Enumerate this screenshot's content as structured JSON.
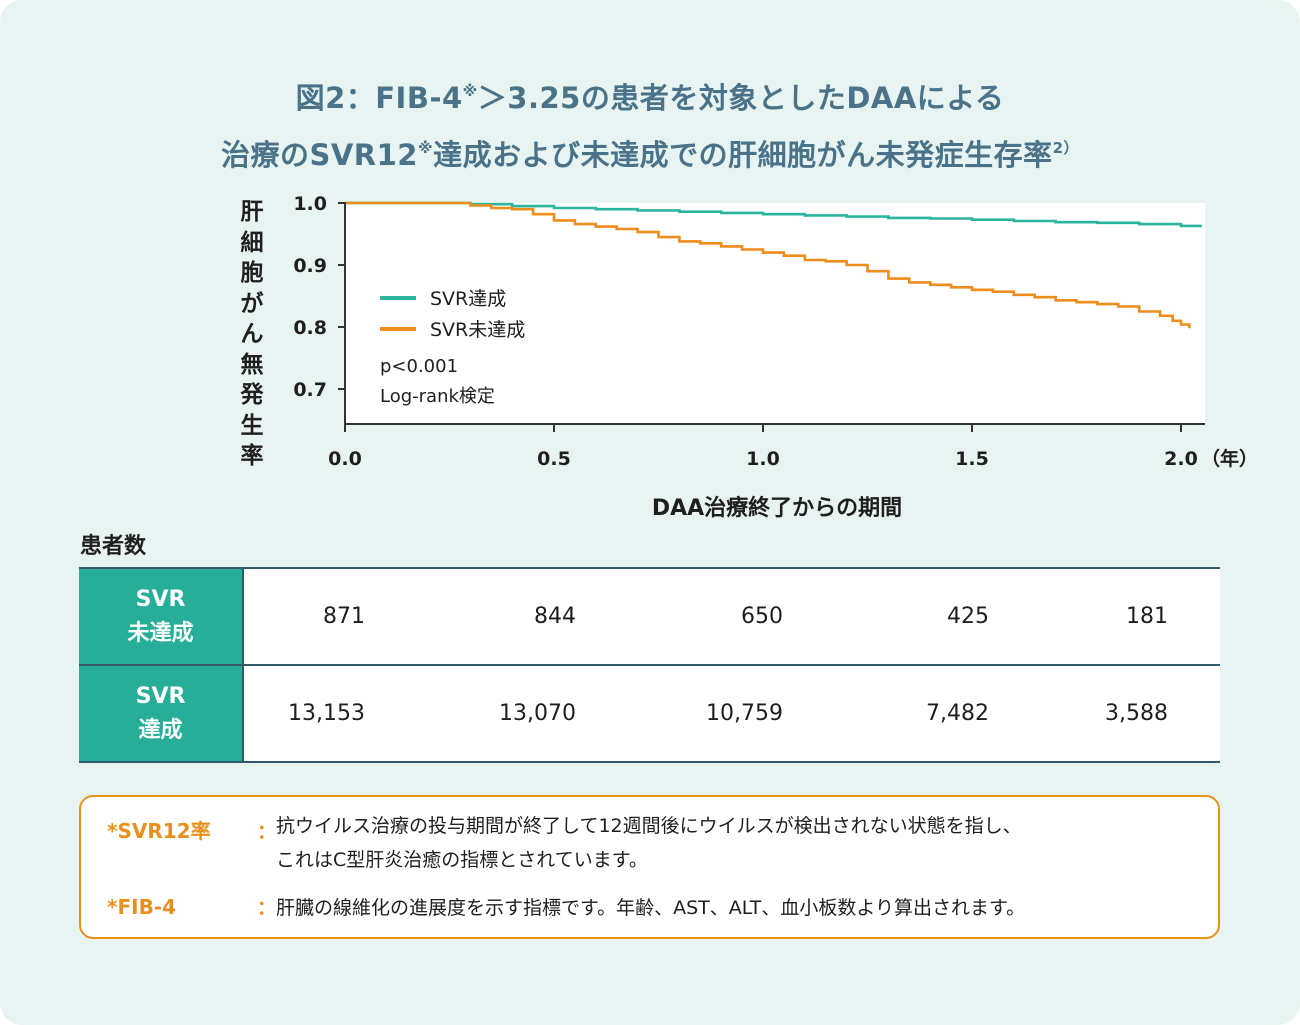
{
  "title": {
    "line1_a": "図2：FIB-4",
    "line1_sup": "※",
    "line1_b": "＞3.25の患者を対象としたDAAによる",
    "line2_a": "治療のSVR12",
    "line2_sup": "※",
    "line2_b": "達成および未達成での肝細胞がん未発症生存率",
    "line2_ref": "2）"
  },
  "chart_data": {
    "type": "line",
    "title": "図2：FIB-4※＞3.25の患者を対象としたDAAによる治療のSVR12※達成および未達成での肝細胞がん未発症生存率2）",
    "xlabel": "DAA治療終了からの期間",
    "xunit": "（年）",
    "ylabel": "肝細胞がん無発生率",
    "xlim": [
      0,
      2.05
    ],
    "ylim": [
      0.64,
      1.0
    ],
    "x_ticks": [
      "0.0",
      "0.5",
      "1.0",
      "1.5",
      "2.0"
    ],
    "y_ticks": [
      "1.0",
      "0.9",
      "0.8",
      "0.7"
    ],
    "legend_position": "inside-left",
    "annotation": [
      "p<0.001",
      "Log-rank検定"
    ],
    "series": [
      {
        "name": "SVR達成",
        "color": "#2bb59c",
        "x": [
          0,
          0.25,
          0.3,
          0.4,
          0.5,
          0.6,
          0.7,
          0.8,
          0.9,
          1.0,
          1.1,
          1.2,
          1.3,
          1.4,
          1.5,
          1.6,
          1.7,
          1.8,
          1.9,
          2.0,
          2.05
        ],
        "y": [
          1.0,
          1.0,
          0.998,
          0.995,
          0.992,
          0.99,
          0.988,
          0.986,
          0.984,
          0.982,
          0.98,
          0.978,
          0.976,
          0.975,
          0.973,
          0.971,
          0.969,
          0.968,
          0.966,
          0.963,
          0.963
        ]
      },
      {
        "name": "SVR未達成",
        "color": "#ee8c1c",
        "x": [
          0,
          0.25,
          0.3,
          0.35,
          0.4,
          0.45,
          0.5,
          0.55,
          0.6,
          0.65,
          0.7,
          0.75,
          0.8,
          0.85,
          0.9,
          0.95,
          1.0,
          1.05,
          1.1,
          1.15,
          1.2,
          1.25,
          1.3,
          1.35,
          1.4,
          1.45,
          1.5,
          1.55,
          1.6,
          1.65,
          1.7,
          1.75,
          1.8,
          1.85,
          1.9,
          1.95,
          1.98,
          2.0,
          2.02
        ],
        "y": [
          1.0,
          1.0,
          0.996,
          0.992,
          0.99,
          0.982,
          0.972,
          0.966,
          0.962,
          0.958,
          0.953,
          0.945,
          0.938,
          0.935,
          0.93,
          0.925,
          0.92,
          0.915,
          0.908,
          0.906,
          0.9,
          0.89,
          0.878,
          0.872,
          0.868,
          0.864,
          0.86,
          0.857,
          0.852,
          0.848,
          0.843,
          0.84,
          0.837,
          0.833,
          0.825,
          0.818,
          0.81,
          0.804,
          0.798
        ]
      }
    ]
  },
  "patients_label": "患者数",
  "patients_table": {
    "rows": [
      {
        "label_line1": "SVR",
        "label_line2": "未達成",
        "values": [
          "871",
          "844",
          "650",
          "425",
          "181"
        ]
      },
      {
        "label_line1": "SVR",
        "label_line2": "達成",
        "values": [
          "13,153",
          "13,070",
          "10,759",
          "7,482",
          "3,588"
        ]
      }
    ]
  },
  "notes": {
    "svr_term": "*SVR12率",
    "svr_colon": "：",
    "svr_line1": "抗ウイルス治療の投与期間が終了して12週間後にウイルスが検出されない状態を指し、",
    "svr_line2": "これはC型肝炎治癒の指標とされています。",
    "fib_term": "*FIB-4",
    "fib_colon": "：",
    "fib_line": "肝臓の線維化の進展度を示す指標です。年齢、AST、ALT、血小板数より算出されます。"
  },
  "colors": {
    "background": "#e8f4f1",
    "title": "#4a7389",
    "accent_teal": "#27ae98",
    "accent_orange": "#e8901c",
    "table_border": "#33596a"
  }
}
